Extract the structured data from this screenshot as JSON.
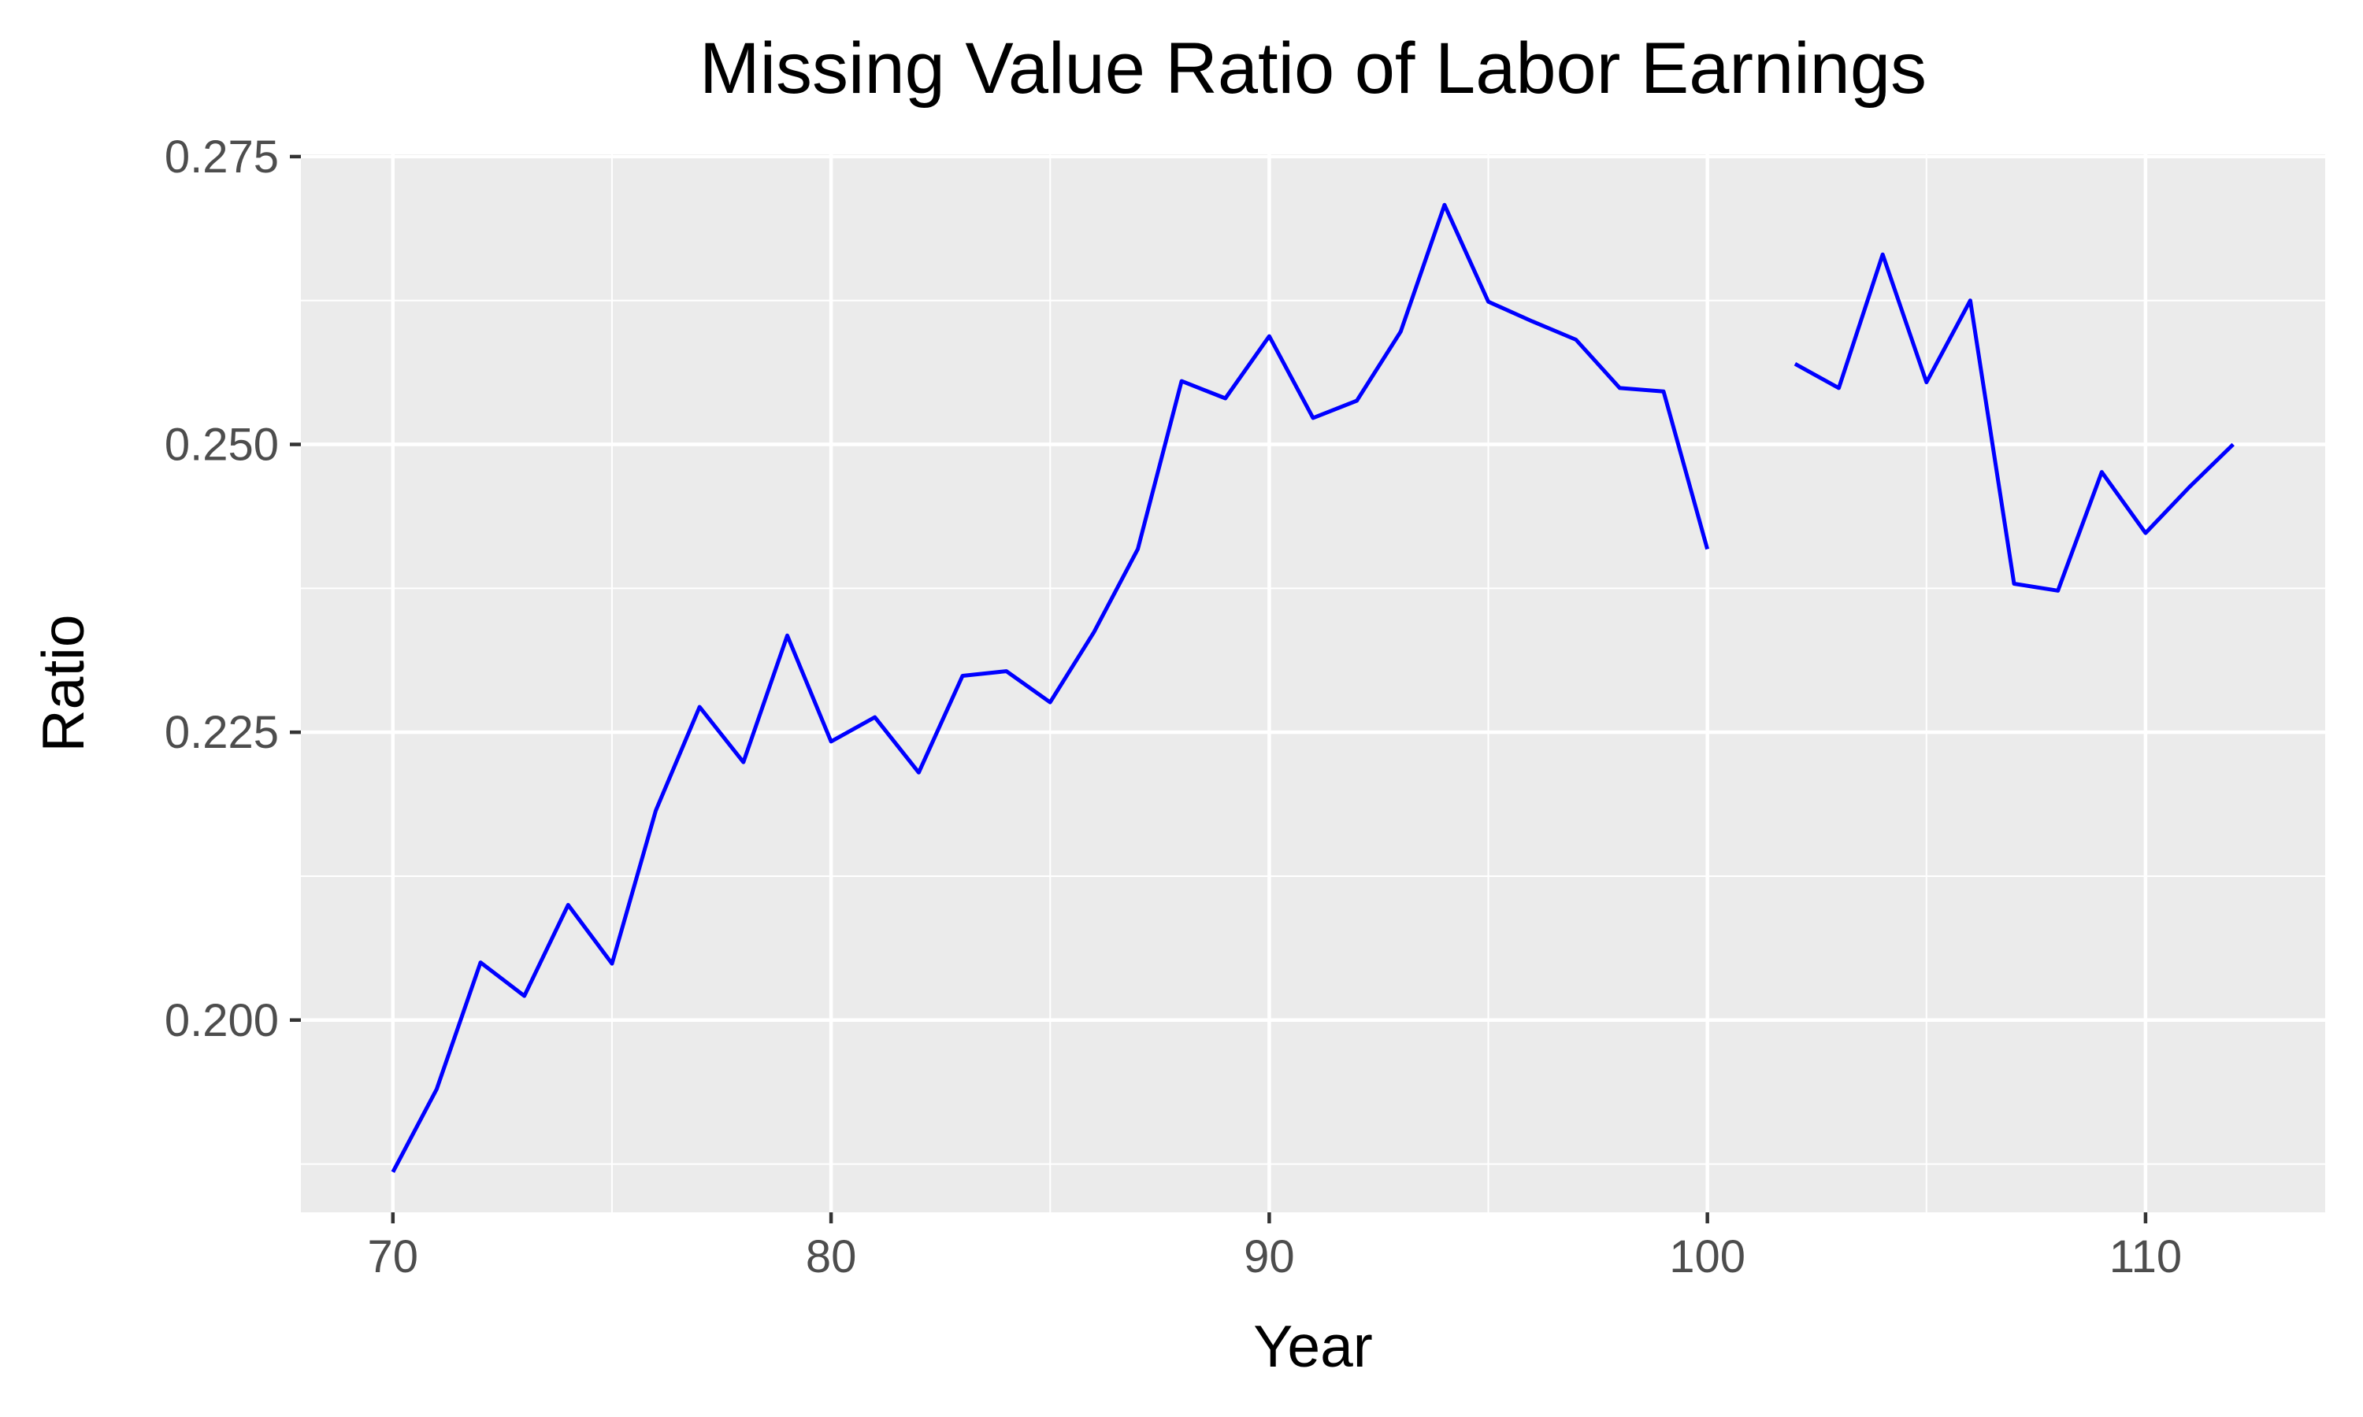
{
  "chart_data": {
    "type": "line",
    "title": "Missing Value Ratio of Labor Earnings",
    "xlabel": "Year",
    "ylabel": "Ratio",
    "xlim": [
      67.9,
      114.1
    ],
    "ylim": [
      0.1833,
      0.2752
    ],
    "x_ticks": [
      70,
      80,
      90,
      100,
      110
    ],
    "y_ticks": [
      0.2,
      0.225,
      0.25,
      0.275
    ],
    "x_tick_labels": [
      "70",
      "80",
      "90",
      "100",
      "110"
    ],
    "y_tick_labels": [
      "0.200",
      "0.225",
      "0.250",
      "0.275"
    ],
    "grid": true,
    "legend": "none",
    "series": [
      {
        "color": "#0000ff",
        "x": [
          70,
          71,
          72,
          73,
          74,
          75,
          76,
          77,
          78,
          79,
          80,
          81,
          82,
          83,
          84,
          85,
          86,
          87,
          88,
          89,
          90,
          91,
          92,
          93,
          94,
          95,
          96,
          97,
          98,
          99,
          100,
          101,
          102,
          103,
          104,
          105,
          106,
          107,
          108,
          109,
          110,
          111,
          112
        ],
        "y": [
          0.1868,
          0.194,
          0.205,
          0.2021,
          0.21,
          0.2049,
          0.2182,
          0.2272,
          0.2224,
          0.2334,
          0.2242,
          0.2263,
          0.2215,
          0.2299,
          0.2303,
          0.2276,
          0.2337,
          0.2409,
          0.2555,
          0.254,
          0.2594,
          0.2523,
          0.2538,
          0.2598,
          0.2708,
          0.2624,
          0.2607,
          0.2591,
          0.2549,
          0.2546,
          0.2409,
          null,
          0.257,
          0.2549,
          0.2665,
          0.2554,
          0.2625,
          0.2379,
          0.2373,
          0.2476,
          0.2423,
          0.2463,
          0.25
        ]
      }
    ]
  }
}
